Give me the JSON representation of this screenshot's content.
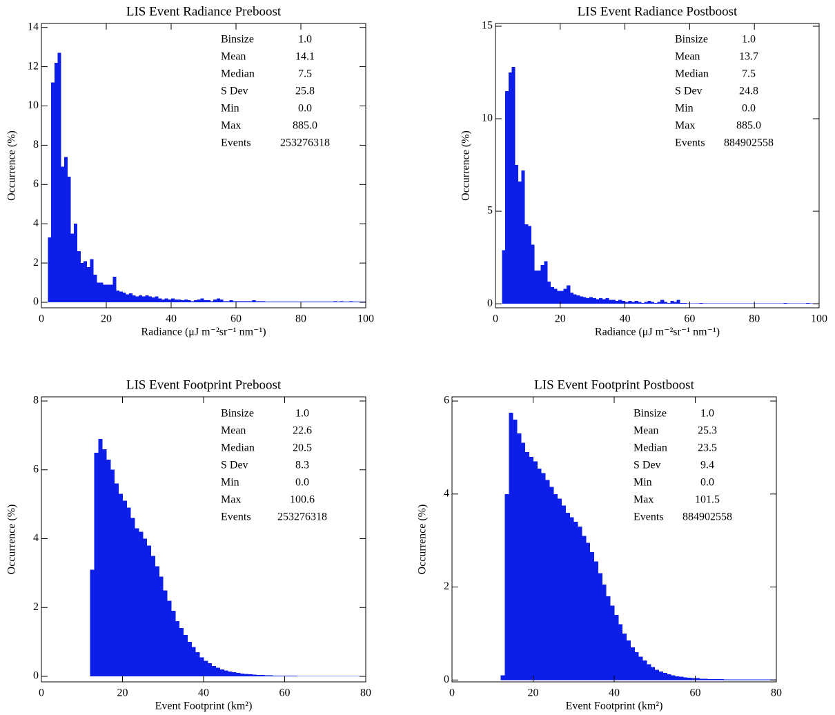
{
  "chart_data": [
    {
      "type": "histogram",
      "title": "LIS Event Radiance Preboost",
      "xlabel": "Radiance (μJ m⁻²sr⁻¹ nm⁻¹)",
      "ylabel": "Occurrence (%)",
      "color": "#0d1ee8",
      "bins": [
        2,
        3,
        4,
        5,
        6,
        7,
        8,
        9,
        10,
        11,
        12,
        13,
        14,
        15,
        16,
        17,
        18,
        19,
        20,
        21,
        22,
        23,
        24,
        25,
        26,
        27,
        28,
        29,
        30,
        31,
        32,
        33,
        34,
        35,
        36,
        37,
        38,
        39,
        40,
        41,
        42,
        43,
        44,
        45,
        46,
        47,
        48,
        49,
        50,
        51,
        52,
        53,
        54,
        55,
        56,
        57,
        58,
        59,
        60,
        61,
        62,
        63,
        64,
        65,
        66,
        67,
        68,
        69,
        70,
        71,
        72,
        73,
        74,
        75,
        76,
        77,
        78,
        79,
        80,
        81,
        82,
        83,
        84,
        85,
        86,
        87,
        88,
        89,
        90,
        91,
        92,
        93,
        94,
        95,
        96,
        97,
        98,
        99,
        100
      ],
      "values": [
        3.3,
        11.2,
        12.2,
        12.7,
        6.9,
        7.4,
        6.4,
        3.5,
        4.0,
        2.6,
        2.0,
        2.1,
        1.8,
        2.2,
        1.4,
        1.0,
        1.0,
        0.9,
        0.9,
        0.9,
        1.3,
        0.6,
        0.55,
        0.5,
        0.4,
        0.45,
        0.35,
        0.3,
        0.35,
        0.3,
        0.35,
        0.3,
        0.25,
        0.3,
        0.2,
        0.15,
        0.2,
        0.15,
        0.2,
        0.15,
        0.15,
        0.1,
        0.15,
        0.1,
        0.05,
        0.1,
        0.15,
        0.2,
        0.1,
        0.1,
        0.05,
        0.15,
        0.2,
        0.15,
        0.05,
        0.05,
        0.1,
        0.05,
        0.05,
        0.05,
        0.05,
        0.05,
        0.05,
        0.1,
        0.05,
        0.05,
        0.05,
        0.03,
        0.03,
        0.03,
        0.03,
        0.03,
        0.03,
        0.03,
        0.03,
        0.03,
        0.03,
        0.03,
        0.03,
        0.03,
        0.03,
        0.03,
        0.03,
        0.03,
        0.03,
        0.03,
        0.03,
        0.03,
        0.05,
        0.03,
        0.05,
        0.03,
        0.03,
        0.05,
        0.03,
        0.03,
        0.03,
        0.03
      ],
      "xlim": [
        0,
        100
      ],
      "xticks": [
        0,
        20,
        40,
        60,
        80,
        100
      ],
      "ylim": [
        -0.28,
        14.2
      ],
      "yticks": [
        0,
        2,
        4,
        6,
        8,
        10,
        12,
        14
      ],
      "stats": [
        [
          "Binsize",
          "1.0"
        ],
        [
          "Mean",
          "14.1"
        ],
        [
          "Median",
          "7.5"
        ],
        [
          "S Dev",
          "25.8"
        ],
        [
          "Min",
          "0.0"
        ],
        [
          "Max",
          "885.0"
        ],
        [
          "Events",
          "253276318"
        ]
      ]
    },
    {
      "type": "histogram",
      "title": "LIS Event Radiance Postboost",
      "xlabel": "Radiance (μJ m⁻²sr⁻¹ nm⁻¹)",
      "ylabel": "Occurrence (%)",
      "color": "#0d1ee8",
      "bins": [
        2,
        3,
        4,
        5,
        6,
        7,
        8,
        9,
        10,
        11,
        12,
        13,
        14,
        15,
        16,
        17,
        18,
        19,
        20,
        21,
        22,
        23,
        24,
        25,
        26,
        27,
        28,
        29,
        30,
        31,
        32,
        33,
        34,
        35,
        36,
        37,
        38,
        39,
        40,
        41,
        42,
        43,
        44,
        45,
        46,
        47,
        48,
        49,
        50,
        51,
        52,
        53,
        54,
        55,
        56,
        57,
        58,
        59,
        60,
        61,
        62,
        63,
        64,
        65,
        66,
        67,
        68,
        69,
        70,
        71,
        72,
        73,
        74,
        75,
        76,
        77,
        78,
        79,
        80,
        81,
        82,
        83,
        84,
        85,
        86,
        87,
        88,
        89,
        90,
        91,
        92,
        93,
        94,
        95,
        96,
        97,
        98,
        99,
        100
      ],
      "values": [
        2.9,
        11.5,
        12.5,
        12.8,
        7.5,
        6.6,
        7.2,
        4.3,
        4.2,
        3.2,
        1.8,
        1.8,
        2.1,
        2.3,
        1.2,
        0.9,
        0.8,
        0.7,
        0.7,
        0.8,
        1.0,
        0.6,
        0.5,
        0.45,
        0.4,
        0.35,
        0.3,
        0.35,
        0.3,
        0.25,
        0.3,
        0.25,
        0.3,
        0.2,
        0.2,
        0.15,
        0.2,
        0.15,
        0.1,
        0.15,
        0.1,
        0.15,
        0.1,
        0.05,
        0.1,
        0.15,
        0.1,
        0.05,
        0.1,
        0.2,
        0.1,
        0.05,
        0.15,
        0.1,
        0.2,
        0.05,
        0.05,
        0.03,
        0.03,
        0.03,
        0.03,
        0.05,
        0.03,
        0.03,
        0.03,
        0.03,
        0.03,
        0.03,
        0.03,
        0.03,
        0.03,
        0.03,
        0.03,
        0.03,
        0.03,
        0.03,
        0.03,
        0.03,
        0.03,
        0.03,
        0.03,
        0.03,
        0.03,
        0.03,
        0.03,
        0.03,
        0.03,
        0.05,
        0.03,
        0.03,
        0.03,
        0.03,
        0.03,
        0.03,
        0.05,
        0.03,
        0.03,
        0.03
      ],
      "xlim": [
        0,
        100
      ],
      "xticks": [
        0,
        20,
        40,
        60,
        80,
        100
      ],
      "ylim": [
        -0.22,
        15.15
      ],
      "yticks": [
        0,
        5,
        10,
        15
      ],
      "stats": [
        [
          "Binsize",
          "1.0"
        ],
        [
          "Mean",
          "13.7"
        ],
        [
          "Median",
          "7.5"
        ],
        [
          "S Dev",
          "24.8"
        ],
        [
          "Min",
          "0.0"
        ],
        [
          "Max",
          "885.0"
        ],
        [
          "Events",
          "884902558"
        ]
      ]
    },
    {
      "type": "histogram",
      "title": "LIS Event Footprint Preboost",
      "xlabel": "Event Footprint (km²)",
      "ylabel": "Occurrence (%)",
      "color": "#0d1ee8",
      "bins": [
        12,
        13,
        14,
        15,
        16,
        17,
        18,
        19,
        20,
        21,
        22,
        23,
        24,
        25,
        26,
        27,
        28,
        29,
        30,
        31,
        32,
        33,
        34,
        35,
        36,
        37,
        38,
        39,
        40,
        41,
        42,
        43,
        44,
        45,
        46,
        47,
        48,
        49,
        50,
        51,
        52,
        53,
        54,
        55,
        56,
        57,
        58,
        59,
        60,
        61,
        62,
        63,
        64,
        65,
        66,
        67,
        68,
        69,
        70,
        71,
        72,
        73,
        74,
        75,
        76,
        77,
        78,
        79,
        80
      ],
      "values": [
        3.1,
        6.5,
        6.9,
        6.6,
        6.3,
        6.0,
        5.6,
        5.3,
        5.1,
        4.9,
        4.6,
        4.3,
        4.2,
        4.0,
        3.8,
        3.5,
        3.2,
        2.9,
        2.5,
        2.2,
        1.9,
        1.6,
        1.4,
        1.2,
        1.0,
        0.85,
        0.7,
        0.55,
        0.45,
        0.38,
        0.3,
        0.25,
        0.2,
        0.17,
        0.14,
        0.12,
        0.1,
        0.08,
        0.07,
        0.06,
        0.05,
        0.04,
        0.04,
        0.03,
        0.03,
        0.02,
        0.02,
        0.02,
        0.02,
        0.02,
        0.02,
        0.01,
        0.01,
        0.01,
        0.01,
        0.01,
        0.01,
        0.01,
        0.01,
        0.01,
        0.01,
        0.01,
        0.01,
        0.01,
        0.01,
        0.01,
        0.01,
        0.01
      ],
      "xlim": [
        0,
        80
      ],
      "xticks": [
        0,
        20,
        40,
        60,
        80
      ],
      "ylim": [
        -0.16,
        8.12
      ],
      "yticks": [
        0,
        2,
        4,
        6,
        8
      ],
      "stats": [
        [
          "Binsize",
          "1.0"
        ],
        [
          "Mean",
          "22.6"
        ],
        [
          "Median",
          "20.5"
        ],
        [
          "S Dev",
          "8.3"
        ],
        [
          "Min",
          "0.0"
        ],
        [
          "Max",
          "100.6"
        ],
        [
          "Events",
          "253276318"
        ]
      ]
    },
    {
      "type": "histogram",
      "title": "LIS Event Footprint Postboost",
      "xlabel": "Event Footprint (km²)",
      "ylabel": "Occurrence (%)",
      "color": "#0d1ee8",
      "bins": [
        12,
        13,
        14,
        15,
        16,
        17,
        18,
        19,
        20,
        21,
        22,
        23,
        24,
        25,
        26,
        27,
        28,
        29,
        30,
        31,
        32,
        33,
        34,
        35,
        36,
        37,
        38,
        39,
        40,
        41,
        42,
        43,
        44,
        45,
        46,
        47,
        48,
        49,
        50,
        51,
        52,
        53,
        54,
        55,
        56,
        57,
        58,
        59,
        60,
        61,
        62,
        63,
        64,
        65,
        66,
        67,
        68,
        69,
        70,
        71,
        72,
        73,
        74,
        75,
        76,
        77,
        78,
        79,
        80
      ],
      "values": [
        0.1,
        4.0,
        5.75,
        5.6,
        5.3,
        5.1,
        4.9,
        4.8,
        4.7,
        4.55,
        4.45,
        4.3,
        4.15,
        4.0,
        3.9,
        3.75,
        3.6,
        3.5,
        3.4,
        3.3,
        3.1,
        2.95,
        2.75,
        2.55,
        2.3,
        2.05,
        1.8,
        1.6,
        1.4,
        1.2,
        1.0,
        0.85,
        0.7,
        0.6,
        0.5,
        0.42,
        0.34,
        0.28,
        0.22,
        0.18,
        0.15,
        0.12,
        0.1,
        0.08,
        0.07,
        0.06,
        0.05,
        0.04,
        0.04,
        0.03,
        0.03,
        0.02,
        0.02,
        0.02,
        0.02,
        0.01,
        0.01,
        0.01,
        0.01,
        0.01,
        0.01,
        0.01,
        0.01,
        0.01,
        0.01,
        0.01,
        0.01,
        0.01
      ],
      "xlim": [
        0,
        80
      ],
      "xticks": [
        0,
        20,
        40,
        60,
        80
      ],
      "ylim": [
        -0.04,
        6.09
      ],
      "yticks": [
        0,
        2,
        4,
        6
      ],
      "stats": [
        [
          "Binsize",
          "1.0"
        ],
        [
          "Mean",
          "25.3"
        ],
        [
          "Median",
          "23.5"
        ],
        [
          "S Dev",
          "9.4"
        ],
        [
          "Min",
          "0.0"
        ],
        [
          "Max",
          "101.5"
        ],
        [
          "Events",
          "884902558"
        ]
      ]
    }
  ]
}
